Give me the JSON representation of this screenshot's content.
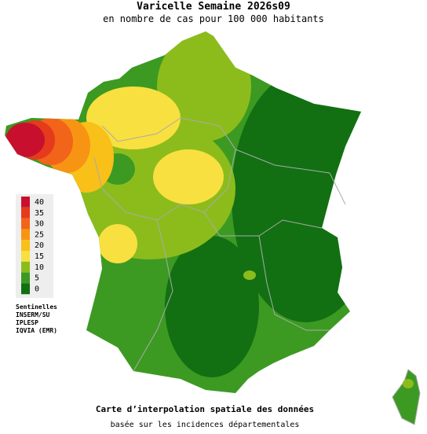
{
  "header": {
    "title": "Varicelle Semaine 2026s09",
    "subtitle": "en nombre de cas pour 100 000 habitants"
  },
  "legend": {
    "items": [
      {
        "value": 40,
        "color": "#c8102e"
      },
      {
        "value": 35,
        "color": "#e63a1c"
      },
      {
        "value": 30,
        "color": "#f2641a"
      },
      {
        "value": 25,
        "color": "#f89414"
      },
      {
        "value": 20,
        "color": "#f8c018"
      },
      {
        "value": 15,
        "color": "#f8e040"
      },
      {
        "value": 10,
        "color": "#8cbc1c"
      },
      {
        "value": 5,
        "color": "#3c9a22"
      },
      {
        "value": 0,
        "color": "#127012"
      }
    ]
  },
  "credits": [
    "Sentinelles",
    "INSERM/SU",
    "IPLESP",
    "IQVIA (EMR)"
  ],
  "footer": {
    "line1": "Carte d’interpolation spatiale des données",
    "line2": "basée sur les incidences départementales"
  }
}
